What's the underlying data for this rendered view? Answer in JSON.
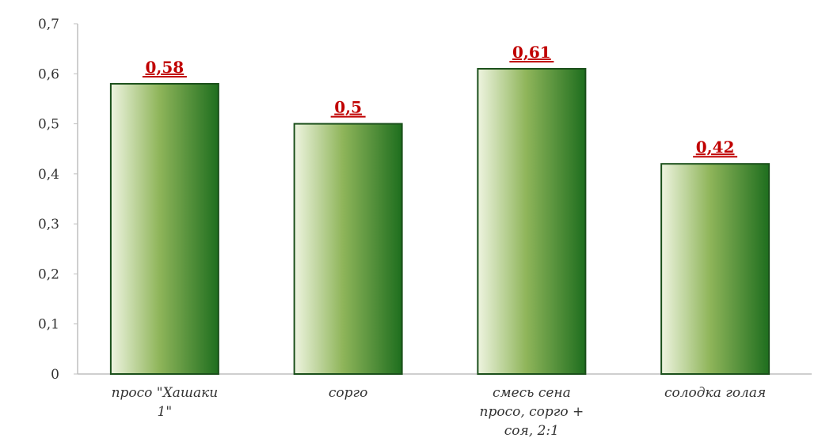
{
  "chart_data": {
    "type": "bar",
    "title": "",
    "xlabel": "",
    "ylabel": "",
    "categories": [
      [
        "просо \"Хашаки",
        "1\""
      ],
      [
        "сорго"
      ],
      [
        "смесь сена",
        "просо, сорго +",
        "соя, 2:1"
      ],
      [
        "солодка голая"
      ]
    ],
    "values": [
      0.58,
      0.5,
      0.61,
      0.42
    ],
    "value_labels": [
      "0,58",
      "0,5",
      "0,61",
      "0,42"
    ],
    "ylim": [
      0,
      0.7
    ],
    "yticks": [
      0,
      0.1,
      0.2,
      0.3,
      0.4,
      0.5,
      0.6,
      0.7
    ],
    "ytick_labels": [
      "0",
      "0,1",
      "0,2",
      "0,3",
      "0,4",
      "0,5",
      "0,6",
      "0,7"
    ],
    "grid": false,
    "legend": "none",
    "colors": {
      "bar_light": "#eef4e0",
      "bar_mid": "#8fb55a",
      "bar_dark": "#1e6e1e",
      "bar_border": "#1a4f1a",
      "value_label": "#c00000",
      "axis": "#bfbfbf"
    }
  }
}
